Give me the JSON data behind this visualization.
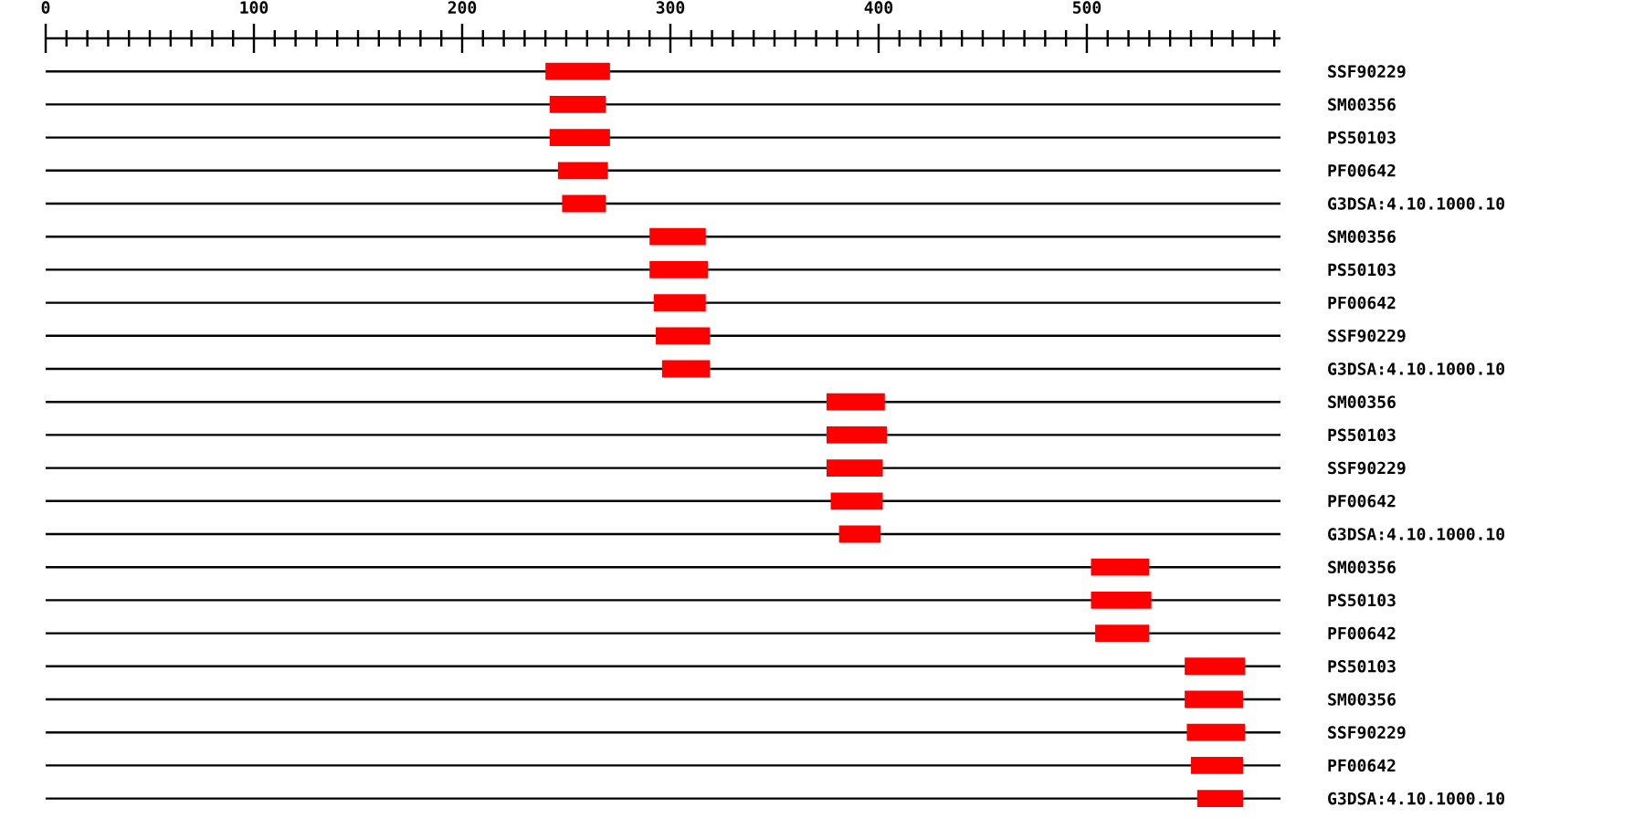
{
  "chart_data": {
    "type": "bar",
    "orientation": "horizontal",
    "categories": [
      "SSF90229",
      "SM00356",
      "PS50103",
      "PF00642",
      "G3DSA:4.10.1000.10",
      "SM00356",
      "PS50103",
      "PF00642",
      "SSF90229",
      "G3DSA:4.10.1000.10",
      "SM00356",
      "PS50103",
      "SSF90229",
      "PF00642",
      "G3DSA:4.10.1000.10",
      "SM00356",
      "PS50103",
      "PF00642",
      "PS50103",
      "SM00356",
      "SSF90229",
      "PF00642",
      "G3DSA:4.10.1000.10"
    ],
    "base": [
      240,
      242,
      242,
      246,
      248,
      290,
      290,
      292,
      293,
      296,
      375,
      375,
      375,
      377,
      381,
      502,
      502,
      504,
      547,
      547,
      548,
      550,
      553
    ],
    "values": [
      31,
      27,
      29,
      24,
      21,
      27,
      28,
      25,
      26,
      23,
      28,
      29,
      27,
      25,
      20,
      28,
      29,
      26,
      29,
      28,
      28,
      25,
      22
    ],
    "color": "#ff0000",
    "xlim": [
      0,
      593
    ],
    "xticks": [
      0,
      {
        "value": 10,
        "label": null
      },
      {
        "value": 20,
        "label": null
      },
      {
        "value": 30,
        "label": null
      },
      {
        "value": 40,
        "label": null
      },
      {
        "value": 50,
        "label": null
      },
      {
        "value": 60,
        "label": null
      },
      {
        "value": 70,
        "label": null
      },
      {
        "value": 80,
        "label": null
      },
      {
        "value": 90,
        "label": null
      },
      100,
      {
        "value": 110,
        "label": null
      },
      {
        "value": 120,
        "label": null
      },
      {
        "value": 130,
        "label": null
      },
      {
        "value": 140,
        "label": null
      },
      {
        "value": 150,
        "label": null
      },
      {
        "value": 160,
        "label": null
      },
      {
        "value": 170,
        "label": null
      },
      {
        "value": 180,
        "label": null
      },
      {
        "value": 190,
        "label": null
      },
      200,
      {
        "value": 210,
        "label": null
      },
      {
        "value": 220,
        "label": null
      },
      {
        "value": 230,
        "label": null
      },
      {
        "value": 240,
        "label": null
      },
      {
        "value": 250,
        "label": null
      },
      {
        "value": 260,
        "label": null
      },
      {
        "value": 270,
        "label": null
      },
      {
        "value": 280,
        "label": null
      },
      {
        "value": 290,
        "label": null
      },
      300,
      {
        "value": 310,
        "label": null
      },
      {
        "value": 320,
        "label": null
      },
      {
        "value": 330,
        "label": null
      },
      {
        "value": 340,
        "label": null
      },
      {
        "value": 350,
        "label": null
      },
      {
        "value": 360,
        "label": null
      },
      {
        "value": 370,
        "label": null
      },
      {
        "value": 380,
        "label": null
      },
      {
        "value": 390,
        "label": null
      },
      400,
      {
        "value": 410,
        "label": null
      },
      {
        "value": 420,
        "label": null
      },
      {
        "value": 430,
        "label": null
      },
      {
        "value": 440,
        "label": null
      },
      {
        "value": 450,
        "label": null
      },
      {
        "value": 460,
        "label": null
      },
      {
        "value": 470,
        "label": null
      },
      {
        "value": 480,
        "label": null
      },
      {
        "value": 490,
        "label": null
      },
      500,
      {
        "value": 510,
        "label": null
      },
      {
        "value": 520,
        "label": null
      },
      {
        "value": 530,
        "label": null
      },
      {
        "value": 540,
        "label": null
      },
      {
        "value": 550,
        "label": null
      },
      {
        "value": 560,
        "label": null
      },
      {
        "value": 570,
        "label": null
      },
      {
        "value": 580,
        "label": null
      },
      {
        "value": 590,
        "label": null
      }
    ],
    "grid": "y"
  }
}
